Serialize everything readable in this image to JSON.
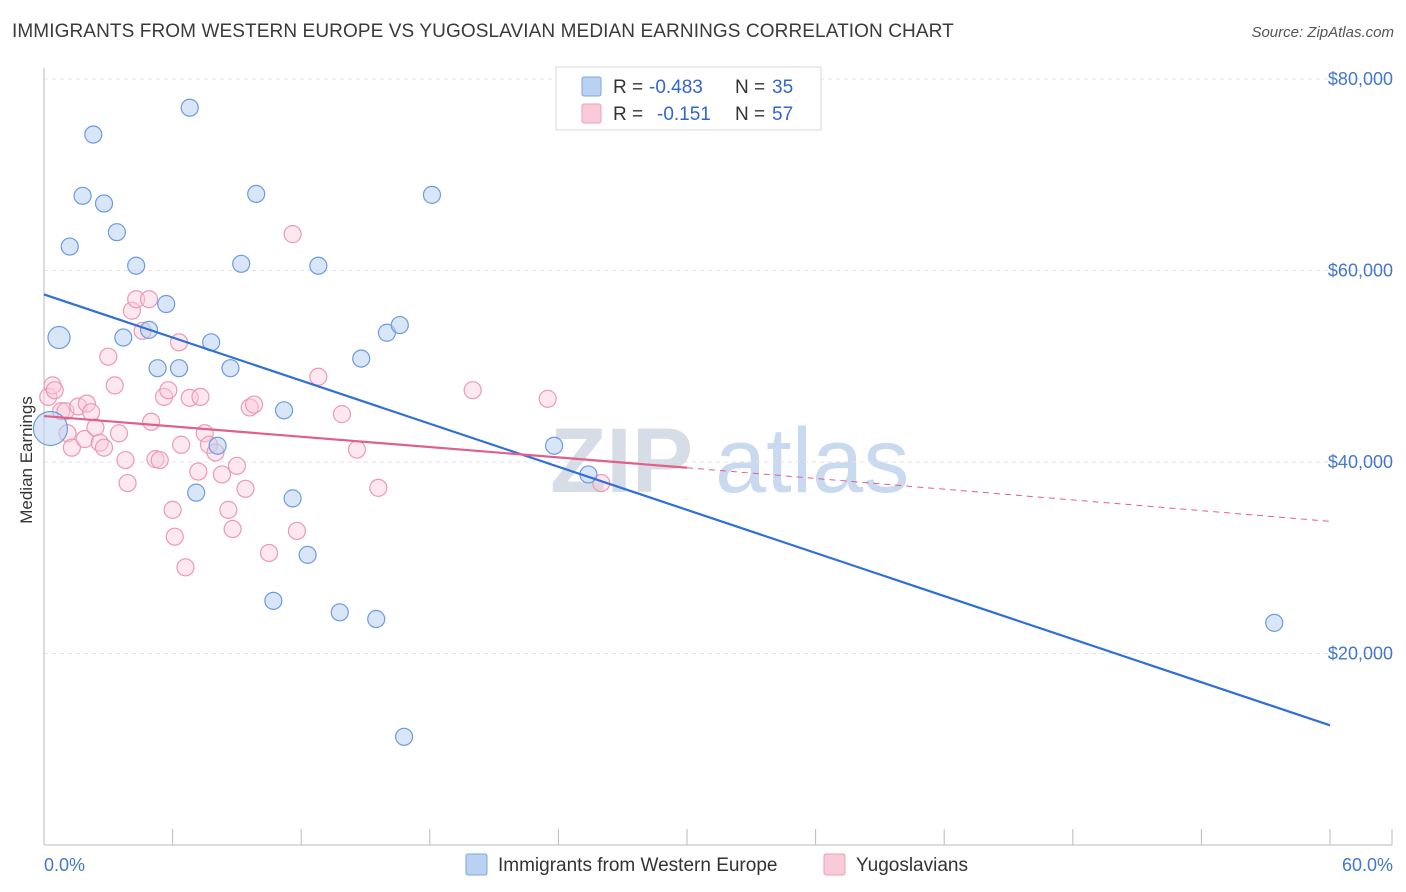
{
  "title": "IMMIGRANTS FROM WESTERN EUROPE VS YUGOSLAVIAN MEDIAN EARNINGS CORRELATION CHART",
  "source": "Source: ZipAtlas.com",
  "watermark": {
    "zip": "ZIP",
    "atlas": "atlas"
  },
  "colors": {
    "blue": "#4a7fd4",
    "blue_fill": "#b9d2f3",
    "pink": "#e36a90",
    "pink_fill": "#f6c1d1",
    "axis_text": "#4477cc"
  },
  "legend": {
    "rows": [
      {
        "r_label": "R =",
        "r_value": "-0.483",
        "n_label": "N =",
        "n_value": "35"
      },
      {
        "r_label": "R =",
        "r_value": "-0.151",
        "n_label": "N =",
        "n_value": "57"
      }
    ]
  },
  "bottom_legend": [
    "Immigrants from Western Europe",
    "Yugoslavians"
  ],
  "chart_data": {
    "type": "scatter",
    "title": "IMMIGRANTS FROM WESTERN EUROPE VS YUGOSLAVIAN MEDIAN EARNINGS CORRELATION CHART",
    "ylabel": "Median Earnings",
    "xlabel": "",
    "xlim": [
      0,
      60
    ],
    "ylim": [
      0,
      82000
    ],
    "x_tick_labels": [
      "0.0%",
      "60.0%"
    ],
    "y_ticks": [
      20000,
      40000,
      60000,
      80000
    ],
    "y_tick_labels": [
      "$20,000",
      "$40,000",
      "$60,000",
      "$80,000"
    ],
    "series": [
      {
        "name": "Immigrants from Western Europe",
        "R": -0.483,
        "N": 35,
        "trend": {
          "x": [
            0,
            60
          ],
          "y": [
            57500,
            12500
          ],
          "dashed_from": null
        },
        "points": [
          [
            0.3,
            43500
          ],
          [
            0.7,
            53000
          ],
          [
            1.2,
            62500
          ],
          [
            1.8,
            67800
          ],
          [
            2.3,
            74200
          ],
          [
            2.8,
            67000
          ],
          [
            3.4,
            64000
          ],
          [
            3.7,
            53000
          ],
          [
            4.3,
            60500
          ],
          [
            4.9,
            53800
          ],
          [
            5.3,
            49800
          ],
          [
            5.7,
            56500
          ],
          [
            6.3,
            49800
          ],
          [
            6.8,
            77000
          ],
          [
            7.1,
            36800
          ],
          [
            7.8,
            52500
          ],
          [
            8.1,
            41700
          ],
          [
            8.7,
            49800
          ],
          [
            9.2,
            60700
          ],
          [
            9.9,
            68000
          ],
          [
            10.7,
            25500
          ],
          [
            11.2,
            45400
          ],
          [
            11.6,
            36200
          ],
          [
            12.3,
            30300
          ],
          [
            12.8,
            60500
          ],
          [
            13.8,
            24300
          ],
          [
            14.8,
            50800
          ],
          [
            15.5,
            23600
          ],
          [
            16.0,
            53500
          ],
          [
            16.6,
            54300
          ],
          [
            16.8,
            11300
          ],
          [
            18.1,
            67900
          ],
          [
            23.8,
            41700
          ],
          [
            25.4,
            38700
          ],
          [
            57.4,
            23200
          ]
        ]
      },
      {
        "name": "Yugoslavians",
        "R": -0.151,
        "N": 57,
        "trend": {
          "x": [
            0,
            30,
            60
          ],
          "y": [
            44800,
            39400,
            33800
          ],
          "dashed_from": 30
        },
        "points": [
          [
            0.2,
            46800
          ],
          [
            0.4,
            48000
          ],
          [
            0.5,
            47500
          ],
          [
            0.8,
            45300
          ],
          [
            1.0,
            45300
          ],
          [
            1.1,
            43000
          ],
          [
            1.3,
            41500
          ],
          [
            1.6,
            45800
          ],
          [
            1.9,
            42400
          ],
          [
            2.0,
            46100
          ],
          [
            2.2,
            45200
          ],
          [
            2.4,
            43600
          ],
          [
            2.6,
            42000
          ],
          [
            2.8,
            41500
          ],
          [
            3.0,
            51000
          ],
          [
            3.3,
            48000
          ],
          [
            3.5,
            43000
          ],
          [
            3.8,
            40200
          ],
          [
            3.9,
            37800
          ],
          [
            4.1,
            55800
          ],
          [
            4.3,
            57000
          ],
          [
            4.6,
            53700
          ],
          [
            4.9,
            57000
          ],
          [
            5.0,
            44200
          ],
          [
            5.2,
            40300
          ],
          [
            5.4,
            40200
          ],
          [
            5.6,
            46800
          ],
          [
            5.8,
            47500
          ],
          [
            6.0,
            35000
          ],
          [
            6.1,
            32200
          ],
          [
            6.3,
            52500
          ],
          [
            6.4,
            41800
          ],
          [
            6.6,
            29000
          ],
          [
            6.8,
            46700
          ],
          [
            7.2,
            39000
          ],
          [
            7.3,
            46800
          ],
          [
            7.5,
            43000
          ],
          [
            7.7,
            41800
          ],
          [
            8.0,
            41000
          ],
          [
            8.3,
            38700
          ],
          [
            8.6,
            35000
          ],
          [
            8.8,
            33000
          ],
          [
            9.0,
            39600
          ],
          [
            9.4,
            37200
          ],
          [
            9.6,
            45700
          ],
          [
            9.8,
            46000
          ],
          [
            10.5,
            30500
          ],
          [
            11.6,
            63800
          ],
          [
            11.8,
            32800
          ],
          [
            12.8,
            48900
          ],
          [
            13.9,
            45000
          ],
          [
            14.6,
            41300
          ],
          [
            15.6,
            37300
          ],
          [
            20.0,
            47500
          ],
          [
            23.5,
            46600
          ],
          [
            26.0,
            37800
          ],
          [
            0.0,
            44800
          ]
        ]
      }
    ]
  }
}
